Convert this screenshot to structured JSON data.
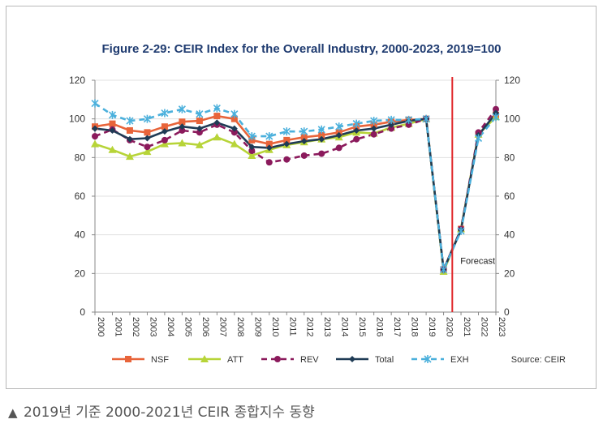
{
  "caption": {
    "marker": "▲",
    "text": "2019년 기준 2000-2021년 CEIR 종합지수 동향"
  },
  "chart_data": {
    "type": "line",
    "title": "Figure 2-29: CEIR Index for the Overall Industry, 2000-2023, 2019=100",
    "source": "Source: CEIR",
    "annotation": "Forecast",
    "forecast_divider_at": "2020",
    "ylim": [
      0,
      120
    ],
    "yticks": [
      0,
      20,
      40,
      60,
      80,
      100,
      120
    ],
    "x": [
      "2000",
      "2001",
      "2002",
      "2003",
      "2004",
      "2005",
      "2006",
      "2007",
      "2008",
      "2009",
      "2010",
      "2011",
      "2012",
      "2013",
      "2014",
      "2015",
      "2016",
      "2017",
      "2018",
      "2019",
      "2020",
      "2021",
      "2022",
      "2023"
    ],
    "series": [
      {
        "name": "NSF",
        "color": "#e8643a",
        "dash": "",
        "marker": "square",
        "values": [
          96,
          97.5,
          94,
          93,
          96,
          98.5,
          99,
          101.5,
          100,
          89,
          87,
          89,
          90.5,
          91.5,
          93,
          96,
          97,
          98.5,
          99.5,
          100,
          22,
          43,
          92,
          102
        ]
      },
      {
        "name": "ATT",
        "color": "#b7d438",
        "dash": "",
        "marker": "triangle",
        "values": [
          87,
          84,
          80.5,
          83,
          87,
          87.5,
          86.5,
          90.5,
          87,
          81,
          84,
          86.5,
          88,
          89.5,
          90.5,
          93,
          92.5,
          95.5,
          97.5,
          100,
          21,
          43,
          92,
          101
        ]
      },
      {
        "name": "REV",
        "color": "#8b1a5c",
        "dash": "7,5",
        "marker": "circle",
        "values": [
          91,
          94.5,
          89,
          85.5,
          89,
          94,
          93,
          97,
          93,
          83.5,
          77.5,
          79,
          81,
          82,
          85,
          89.5,
          92,
          95,
          97,
          100,
          22,
          43,
          93,
          105
        ]
      },
      {
        "name": "Total",
        "color": "#1f3b55",
        "dash": "",
        "marker": "diamond",
        "values": [
          95,
          94,
          89.5,
          90,
          93.5,
          96,
          95,
          98,
          95,
          85.5,
          85,
          87,
          88.5,
          89.5,
          91.5,
          94,
          95,
          97,
          99,
          100,
          22,
          42.5,
          91.5,
          103
        ]
      },
      {
        "name": "EXH",
        "color": "#4bb0dc",
        "dash": "7,5",
        "marker": "asterisk",
        "values": [
          108,
          102,
          99,
          100,
          103,
          105,
          102.5,
          105.5,
          102.5,
          91,
          91,
          93.5,
          93.5,
          94.5,
          96,
          97.5,
          99,
          99.5,
          99.5,
          100,
          22,
          42,
          90,
          101
        ]
      }
    ]
  }
}
